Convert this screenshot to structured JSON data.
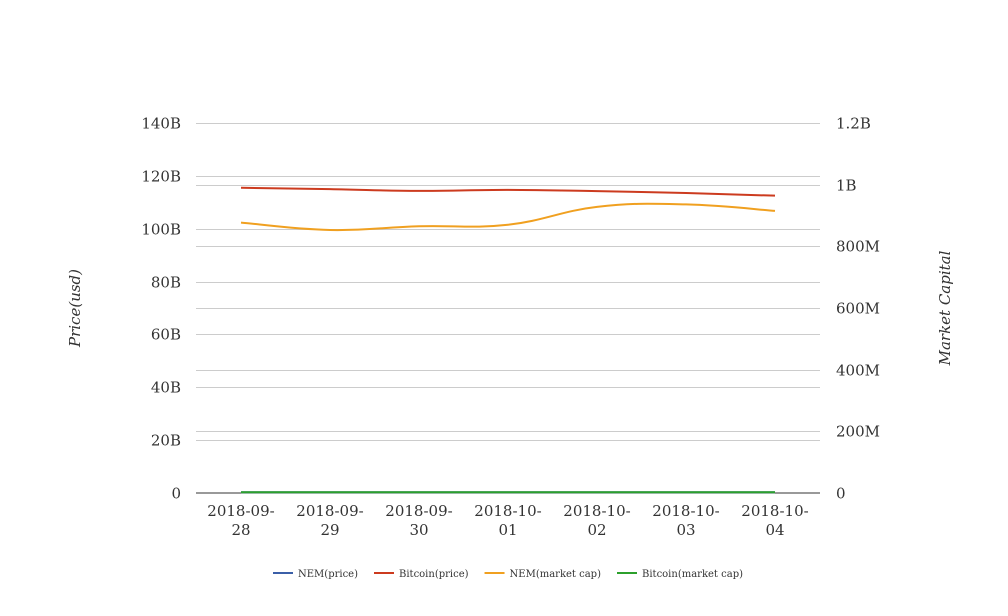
{
  "chart_data": {
    "type": "line",
    "categories": [
      "2018-09-28",
      "2018-09-29",
      "2018-09-30",
      "2018-10-01",
      "2018-10-02",
      "2018-10-03",
      "2018-10-04"
    ],
    "category_lines": [
      [
        "2018-09-",
        "28"
      ],
      [
        "2018-09-",
        "29"
      ],
      [
        "2018-09-",
        "30"
      ],
      [
        "2018-10-",
        "01"
      ],
      [
        "2018-10-",
        "02"
      ],
      [
        "2018-10-",
        "03"
      ],
      [
        "2018-10-",
        "04"
      ]
    ],
    "y_left": {
      "label": "Price(usd)",
      "ylim": [
        0,
        140000000000
      ],
      "ticks": [
        0,
        20000000000,
        40000000000,
        60000000000,
        80000000000,
        100000000000,
        120000000000,
        140000000000
      ],
      "tick_labels": [
        "0",
        "20B",
        "40B",
        "60B",
        "80B",
        "100B",
        "120B",
        "140B"
      ]
    },
    "y_right": {
      "label": "Market Capital",
      "ylim": [
        0,
        1200000000
      ],
      "ticks": [
        0,
        200000000,
        400000000,
        600000000,
        800000000,
        1000000000,
        1200000000
      ],
      "tick_labels": [
        "0",
        "200M",
        "400M",
        "600M",
        "800M",
        "1B",
        "1.2B"
      ]
    },
    "series": [
      {
        "name": "NEM(price)",
        "axis": "left",
        "color": "#3b5fa8",
        "values": [
          0.11,
          0.11,
          0.11,
          0.11,
          0.11,
          0.11,
          0.11
        ]
      },
      {
        "name": "Bitcoin(price)",
        "axis": "left",
        "color": "#cc3b1f",
        "values": [
          115500000000,
          115000000000,
          114300000000,
          114700000000,
          114200000000,
          113500000000,
          112500000000
        ]
      },
      {
        "name": "NEM(market cap)",
        "axis": "right",
        "color": "#f0a020",
        "values": [
          877000000,
          853000000,
          865000000,
          870000000,
          928000000,
          936000000,
          915000000
        ]
      },
      {
        "name": "Bitcoin(market cap)",
        "axis": "right",
        "color": "#2ca02c",
        "values": [
          6600,
          6600,
          6600,
          6600,
          6600,
          6600,
          6600
        ]
      }
    ],
    "grid": true,
    "legend_position": "bottom"
  }
}
